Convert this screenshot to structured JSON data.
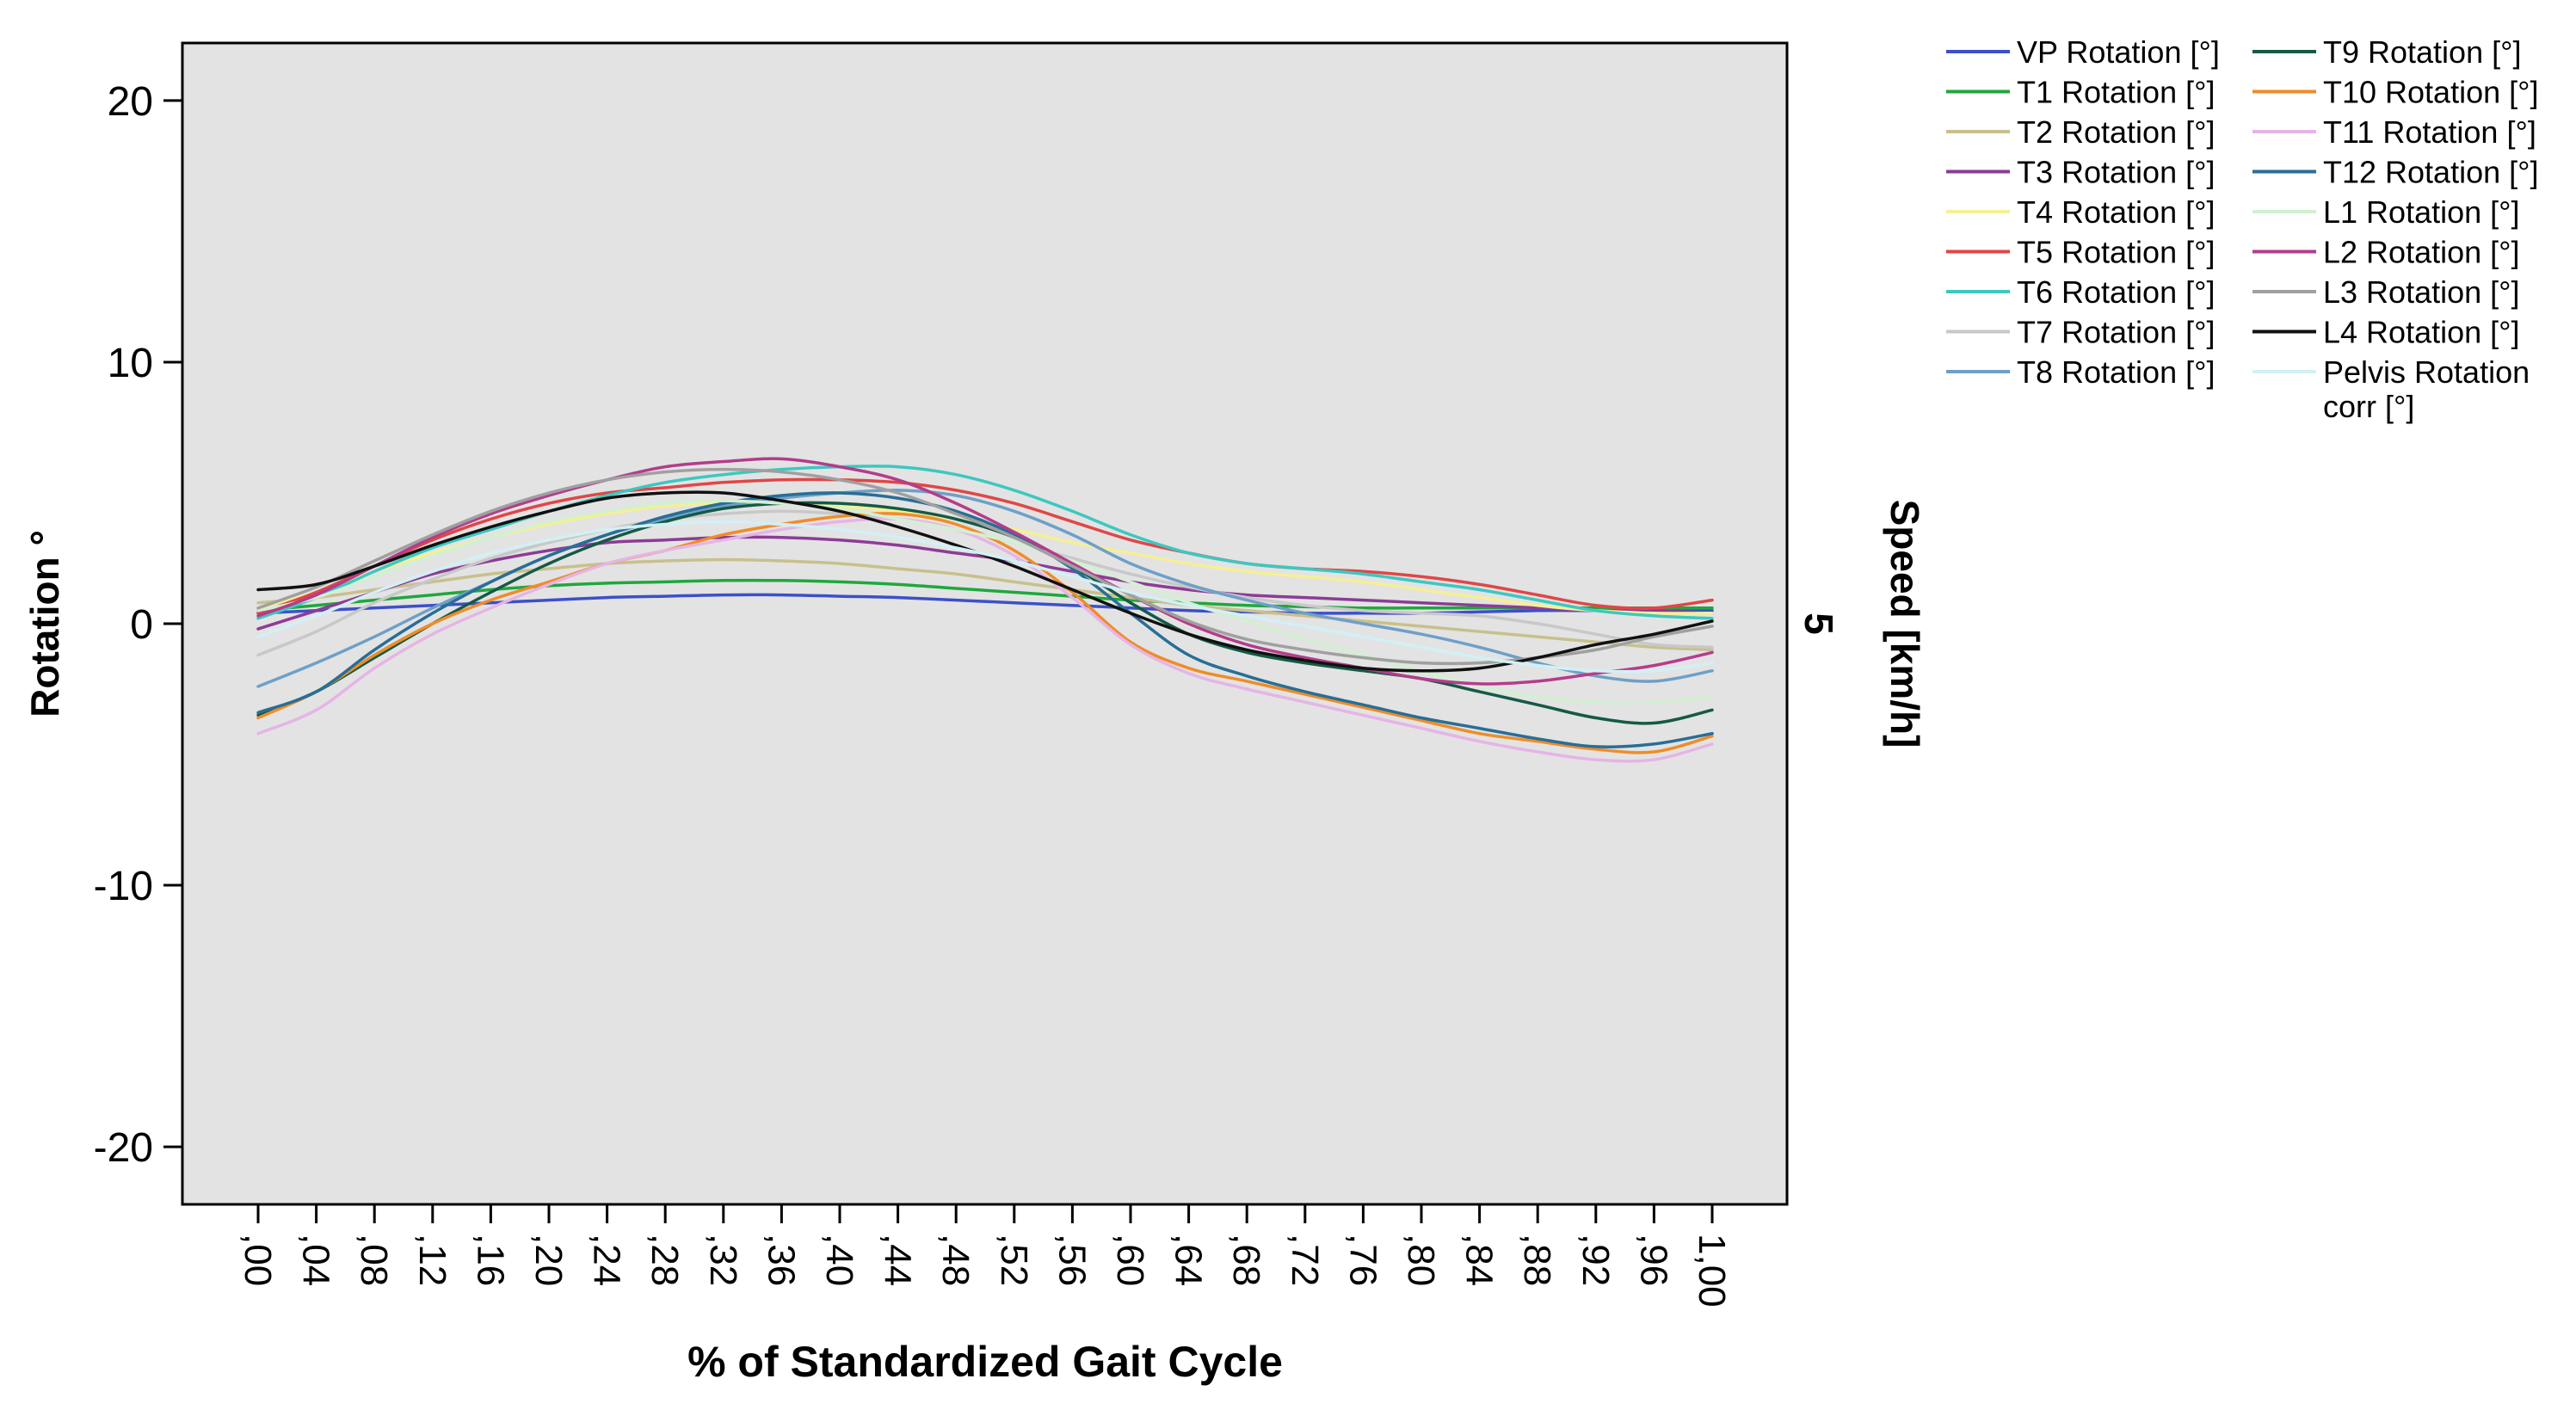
{
  "chart_data": {
    "type": "line",
    "title": "",
    "xlabel": "% of Standardized Gait Cycle",
    "ylabel": "Rotation °",
    "panel_label": "Speed [km/h]",
    "panel_value": "5",
    "xlim": [
      0,
      1
    ],
    "ylim": [
      -22.2,
      22.2
    ],
    "yticks": [
      20,
      10,
      0,
      -10,
      -20
    ],
    "ytick_labels": [
      "20",
      "10",
      "0",
      "-10",
      "-20"
    ],
    "xticks": [
      0,
      0.04,
      0.08,
      0.12,
      0.16,
      0.2,
      0.24,
      0.28,
      0.32,
      0.36,
      0.4,
      0.44,
      0.48,
      0.52,
      0.56,
      0.6,
      0.64,
      0.68,
      0.72,
      0.76,
      0.8,
      0.84,
      0.88,
      0.92,
      0.96,
      1.0
    ],
    "xtick_labels": [
      ",00",
      ",04",
      ",08",
      ",12",
      ",16",
      ",20",
      ",24",
      ",28",
      ",32",
      ",36",
      ",40",
      ",44",
      ",48",
      ",52",
      ",56",
      ",60",
      ",64",
      ",68",
      ",72",
      ",76",
      ",80",
      ",84",
      ",88",
      ",92",
      ",96",
      "1,00"
    ],
    "grid": false,
    "legend_position": "top-right",
    "plot_background": "#e3e3e3",
    "x": [
      0,
      0.04,
      0.08,
      0.12,
      0.16,
      0.2,
      0.24,
      0.28,
      0.32,
      0.36,
      0.4,
      0.44,
      0.48,
      0.52,
      0.56,
      0.6,
      0.64,
      0.68,
      0.72,
      0.76,
      0.8,
      0.84,
      0.88,
      0.92,
      0.96,
      1.0
    ],
    "series": [
      {
        "name": "VP Rotation [°]",
        "color": "#3c50c8",
        "values": [
          0.4,
          0.5,
          0.6,
          0.7,
          0.8,
          0.9,
          1.0,
          1.05,
          1.1,
          1.1,
          1.05,
          1.0,
          0.9,
          0.8,
          0.7,
          0.6,
          0.5,
          0.45,
          0.4,
          0.4,
          0.4,
          0.45,
          0.5,
          0.5,
          0.5,
          0.5
        ]
      },
      {
        "name": "T1 Rotation [°]",
        "color": "#1ea83c",
        "values": [
          0.5,
          0.7,
          0.9,
          1.1,
          1.3,
          1.45,
          1.55,
          1.6,
          1.65,
          1.65,
          1.6,
          1.5,
          1.35,
          1.2,
          1.05,
          0.9,
          0.8,
          0.7,
          0.65,
          0.6,
          0.6,
          0.6,
          0.6,
          0.6,
          0.6,
          0.6
        ]
      },
      {
        "name": "T2 Rotation [°]",
        "color": "#c8c08c",
        "values": [
          0.8,
          1.0,
          1.3,
          1.6,
          1.9,
          2.1,
          2.3,
          2.4,
          2.45,
          2.4,
          2.3,
          2.1,
          1.9,
          1.6,
          1.3,
          1.0,
          0.7,
          0.5,
          0.3,
          0.1,
          -0.1,
          -0.3,
          -0.5,
          -0.7,
          -0.9,
          -1.0
        ]
      },
      {
        "name": "T3 Rotation [°]",
        "color": "#8c3c96",
        "values": [
          -0.2,
          0.5,
          1.2,
          1.9,
          2.4,
          2.8,
          3.1,
          3.2,
          3.3,
          3.3,
          3.2,
          3.0,
          2.7,
          2.4,
          2.0,
          1.6,
          1.3,
          1.1,
          1.0,
          0.9,
          0.8,
          0.7,
          0.6,
          0.5,
          0.5,
          0.4
        ]
      },
      {
        "name": "T4 Rotation [°]",
        "color": "#f5f096",
        "values": [
          0.6,
          1.2,
          2.0,
          2.7,
          3.3,
          3.8,
          4.2,
          4.5,
          4.6,
          4.6,
          4.5,
          4.3,
          4.0,
          3.6,
          3.1,
          2.7,
          2.3,
          2.0,
          1.8,
          1.6,
          1.3,
          1.0,
          0.7,
          0.5,
          0.4,
          0.4
        ]
      },
      {
        "name": "T5 Rotation [°]",
        "color": "#e14646",
        "values": [
          0.4,
          1.2,
          2.2,
          3.2,
          4.0,
          4.6,
          5.0,
          5.2,
          5.4,
          5.5,
          5.5,
          5.4,
          5.1,
          4.6,
          3.9,
          3.2,
          2.7,
          2.3,
          2.1,
          2.0,
          1.8,
          1.5,
          1.1,
          0.7,
          0.6,
          0.9
        ]
      },
      {
        "name": "T6 Rotation [°]",
        "color": "#3cc8c0",
        "values": [
          0.2,
          1.0,
          2.0,
          2.9,
          3.6,
          4.3,
          4.9,
          5.4,
          5.7,
          5.9,
          6.0,
          6.0,
          5.7,
          5.1,
          4.3,
          3.4,
          2.7,
          2.3,
          2.1,
          1.9,
          1.6,
          1.3,
          0.9,
          0.5,
          0.3,
          0.2
        ]
      },
      {
        "name": "T7 Rotation [°]",
        "color": "#c8c8c8",
        "values": [
          -1.2,
          -0.3,
          0.8,
          1.7,
          2.5,
          3.1,
          3.6,
          4.0,
          4.2,
          4.3,
          4.2,
          4.0,
          3.6,
          3.1,
          2.5,
          1.9,
          1.4,
          1.0,
          0.7,
          0.5,
          0.4,
          0.3,
          0.0,
          -0.4,
          -0.8,
          -0.9
        ]
      },
      {
        "name": "T8 Rotation [°]",
        "color": "#6ea0c8",
        "values": [
          -2.4,
          -1.5,
          -0.5,
          0.6,
          1.6,
          2.6,
          3.4,
          4.0,
          4.5,
          4.8,
          5.0,
          5.1,
          4.9,
          4.3,
          3.4,
          2.3,
          1.5,
          0.9,
          0.4,
          0.0,
          -0.4,
          -0.9,
          -1.5,
          -2.0,
          -2.2,
          -1.8
        ]
      },
      {
        "name": "T9 Rotation [°]",
        "color": "#145a46",
        "values": [
          -3.5,
          -2.6,
          -1.3,
          0.0,
          1.2,
          2.3,
          3.2,
          3.9,
          4.4,
          4.6,
          4.6,
          4.4,
          4.0,
          3.3,
          2.2,
          0.8,
          -0.4,
          -1.1,
          -1.5,
          -1.8,
          -2.1,
          -2.6,
          -3.1,
          -3.6,
          -3.8,
          -3.3
        ]
      },
      {
        "name": "T10 Rotation [°]",
        "color": "#f08c28",
        "values": [
          -3.6,
          -2.6,
          -1.2,
          0.0,
          0.9,
          1.6,
          2.3,
          2.8,
          3.4,
          3.8,
          4.1,
          4.2,
          3.8,
          2.8,
          1.2,
          -0.7,
          -1.7,
          -2.2,
          -2.7,
          -3.2,
          -3.7,
          -4.2,
          -4.5,
          -4.8,
          -4.9,
          -4.3
        ]
      },
      {
        "name": "T11 Rotation [°]",
        "color": "#e6b4e6",
        "values": [
          -4.2,
          -3.3,
          -1.7,
          -0.4,
          0.6,
          1.5,
          2.3,
          2.8,
          3.2,
          3.6,
          3.9,
          4.0,
          3.6,
          2.6,
          1.0,
          -0.8,
          -1.9,
          -2.5,
          -3.0,
          -3.5,
          -4.0,
          -4.5,
          -4.9,
          -5.2,
          -5.2,
          -4.6
        ]
      },
      {
        "name": "T12 Rotation [°]",
        "color": "#286e96",
        "values": [
          -3.4,
          -2.6,
          -1.0,
          0.4,
          1.6,
          2.6,
          3.4,
          4.1,
          4.6,
          4.9,
          5.0,
          4.8,
          4.3,
          3.4,
          2.1,
          0.4,
          -1.2,
          -2.0,
          -2.6,
          -3.1,
          -3.6,
          -4.0,
          -4.4,
          -4.7,
          -4.6,
          -4.2
        ]
      },
      {
        "name": "L1 Rotation [°]",
        "color": "#d2f0d2",
        "values": [
          0.5,
          1.0,
          1.8,
          2.6,
          3.3,
          3.9,
          4.3,
          4.6,
          4.7,
          4.6,
          4.4,
          4.0,
          3.6,
          3.1,
          2.4,
          1.6,
          0.8,
          0.1,
          -0.6,
          -1.2,
          -1.8,
          -2.4,
          -2.8,
          -3.0,
          -3.0,
          -2.8
        ]
      },
      {
        "name": "L2 Rotation [°]",
        "color": "#b43c8c",
        "values": [
          0.3,
          1.1,
          2.2,
          3.3,
          4.2,
          4.9,
          5.5,
          6.0,
          6.2,
          6.3,
          6.0,
          5.5,
          4.6,
          3.5,
          2.3,
          1.1,
          0.0,
          -0.8,
          -1.3,
          -1.7,
          -2.1,
          -2.3,
          -2.2,
          -1.9,
          -1.6,
          -1.1
        ]
      },
      {
        "name": "L3 Rotation [°]",
        "color": "#a0a0a0",
        "values": [
          0.6,
          1.4,
          2.4,
          3.4,
          4.3,
          5.0,
          5.5,
          5.8,
          5.9,
          5.8,
          5.5,
          5.0,
          4.2,
          3.3,
          2.2,
          1.1,
          0.1,
          -0.6,
          -1.0,
          -1.3,
          -1.5,
          -1.5,
          -1.3,
          -1.0,
          -0.5,
          -0.1
        ]
      },
      {
        "name": "L4 Rotation [°]",
        "color": "#111111",
        "values": [
          1.3,
          1.5,
          2.2,
          3.0,
          3.7,
          4.3,
          4.8,
          5.0,
          5.0,
          4.7,
          4.3,
          3.7,
          3.0,
          2.2,
          1.3,
          0.4,
          -0.4,
          -1.0,
          -1.4,
          -1.7,
          -1.8,
          -1.7,
          -1.3,
          -0.8,
          -0.4,
          0.1
        ]
      },
      {
        "name": "Pelvis Rotation corr [°]",
        "color": "#d2f0f5",
        "values": [
          -0.5,
          0.3,
          1.2,
          2.0,
          2.7,
          3.2,
          3.6,
          3.8,
          3.9,
          3.8,
          3.6,
          3.3,
          2.9,
          2.4,
          1.8,
          1.2,
          0.7,
          0.3,
          -0.1,
          -0.5,
          -0.9,
          -1.3,
          -1.6,
          -1.8,
          -1.8,
          -1.5
        ]
      }
    ],
    "legend_columns": [
      [
        {
          "lines": [
            "VP Rotation [°]"
          ],
          "series": 0
        },
        {
          "lines": [
            "T1 Rotation [°]"
          ],
          "series": 1
        },
        {
          "lines": [
            "T2 Rotation [°]"
          ],
          "series": 2
        },
        {
          "lines": [
            "T3 Rotation [°]"
          ],
          "series": 3
        },
        {
          "lines": [
            "T4 Rotation [°]"
          ],
          "series": 4
        },
        {
          "lines": [
            "T5 Rotation [°]"
          ],
          "series": 5
        },
        {
          "lines": [
            "T6 Rotation [°]"
          ],
          "series": 6
        },
        {
          "lines": [
            "T7 Rotation [°]"
          ],
          "series": 7
        },
        {
          "lines": [
            "T8 Rotation [°]"
          ],
          "series": 8
        }
      ],
      [
        {
          "lines": [
            "T9 Rotation [°]"
          ],
          "series": 9
        },
        {
          "lines": [
            "T10 Rotation [°]"
          ],
          "series": 10
        },
        {
          "lines": [
            "T11 Rotation [°]"
          ],
          "series": 11
        },
        {
          "lines": [
            "T12 Rotation [°]"
          ],
          "series": 12
        },
        {
          "lines": [
            "L1 Rotation [°]"
          ],
          "series": 13
        },
        {
          "lines": [
            "L2 Rotation [°]"
          ],
          "series": 14
        },
        {
          "lines": [
            "L3 Rotation [°]"
          ],
          "series": 15
        },
        {
          "lines": [
            "L4 Rotation [°]"
          ],
          "series": 16
        },
        {
          "lines": [
            "Pelvis Rotation",
            "corr [°]"
          ],
          "series": 17
        }
      ]
    ]
  }
}
